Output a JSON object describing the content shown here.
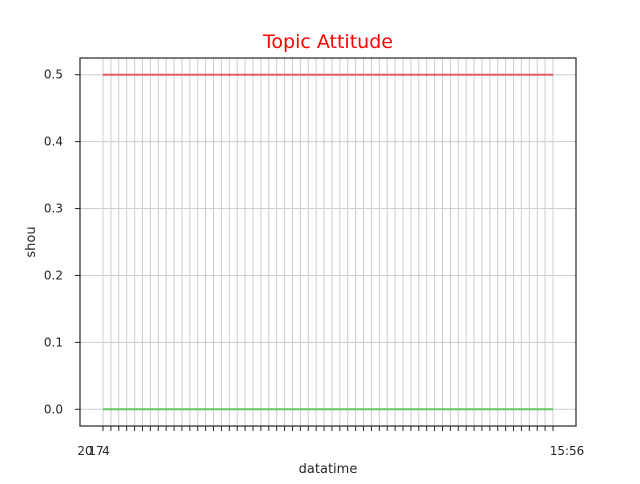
{
  "chart_data": {
    "type": "line",
    "title": "Topic Attitude",
    "xlabel": "datatime",
    "ylabel": "shou",
    "ylim": [
      -0.025,
      0.525
    ],
    "yticks": [
      "0.0",
      "0.1",
      "0.2",
      "0.3",
      "0.4",
      "0.5"
    ],
    "x_tick_count": 58,
    "x_tick_labels_first": "2017",
    "x_tick_labels_last": "15:56",
    "x_tick_labels_partial": [
      "20",
      "17",
      "4",
      "15:56"
    ],
    "grid": true,
    "series": [
      {
        "values_constant": 0.5
      },
      {
        "values_constant": 0.0
      }
    ],
    "colors": {
      "title": "#ff0000",
      "series_top": "#e8595c",
      "series_bottom": "#66c666",
      "grid": "#cccccc",
      "axes": "#262626",
      "text": "#262626"
    }
  }
}
